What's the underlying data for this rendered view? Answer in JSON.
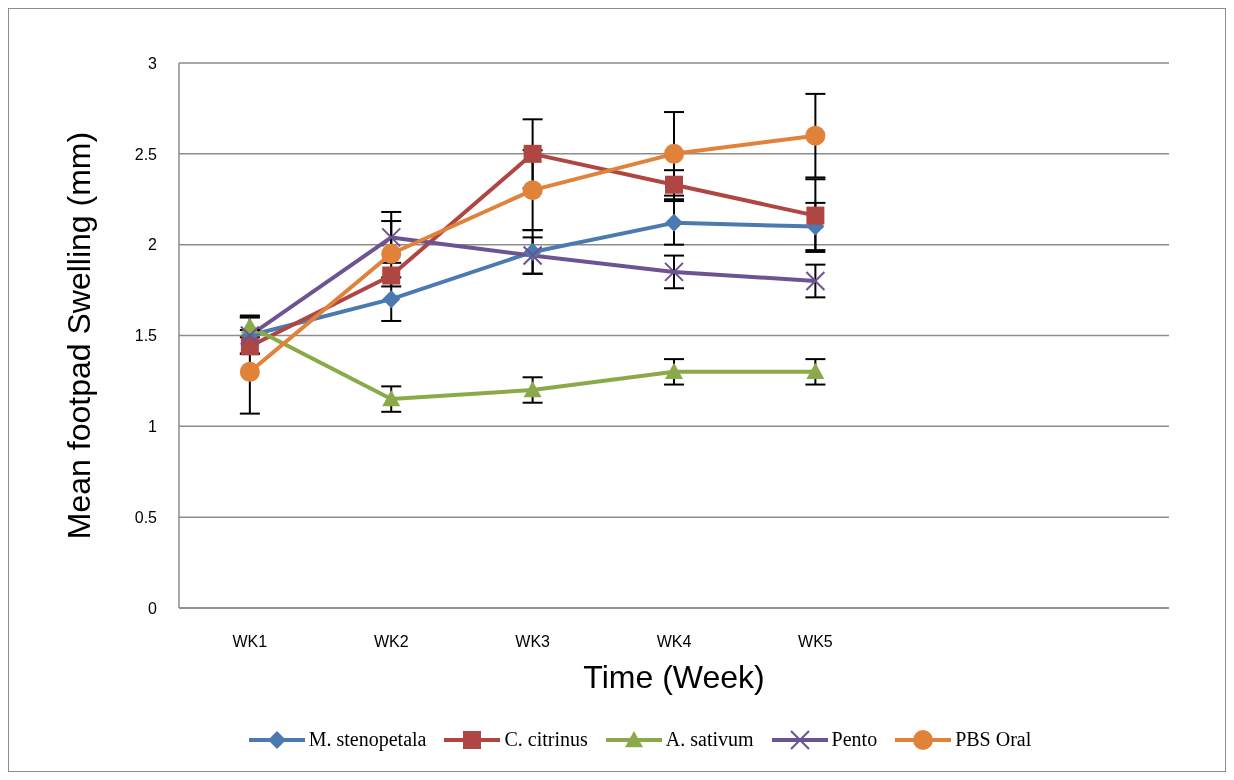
{
  "chart_data": {
    "type": "line",
    "xlabel": "Time (Week)",
    "ylabel": "Mean footpad Swelling (mm)",
    "categories": [
      "WK1",
      "WK2",
      "WK3",
      "WK4",
      "WK5",
      null,
      null
    ],
    "ylim": [
      0,
      3
    ],
    "yticks": [
      0,
      0.5,
      1,
      1.5,
      2,
      2.5,
      3
    ],
    "grid": "y",
    "legend": "bottom",
    "line_style": "solid",
    "series": [
      {
        "name": "M. stenopetala",
        "color": "#4a7ab0",
        "marker": "diamond",
        "values": [
          1.5,
          1.7,
          1.96,
          2.12,
          2.1,
          null,
          null
        ],
        "errors": [
          0.1,
          0.12,
          0.12,
          0.12,
          0.13,
          null,
          null
        ]
      },
      {
        "name": "C. citrinus",
        "color": "#b04643",
        "marker": "square",
        "values": [
          1.44,
          1.83,
          2.5,
          2.33,
          2.16,
          null,
          null
        ],
        "errors": [
          null,
          null,
          0.19,
          0.08,
          0.2,
          null,
          null
        ]
      },
      {
        "name": "A. sativum",
        "color": "#8aaa4a",
        "marker": "triangle",
        "values": [
          1.55,
          1.15,
          1.2,
          1.3,
          1.3,
          null,
          null
        ],
        "errors": [
          0.06,
          0.07,
          0.07,
          0.07,
          0.07,
          null,
          null
        ]
      },
      {
        "name": "Pento",
        "color": "#6d5391",
        "marker": "cross",
        "values": [
          1.5,
          2.04,
          1.94,
          1.85,
          1.8,
          null,
          null
        ],
        "errors": [
          0.1,
          0.14,
          0.1,
          0.09,
          0.09,
          null,
          null
        ]
      },
      {
        "name": "PBS Oral",
        "color": "#e0823a",
        "marker": "circle",
        "values": [
          1.3,
          1.95,
          2.3,
          2.5,
          2.6,
          null,
          null
        ],
        "errors": [
          0.23,
          0.18,
          0.22,
          0.23,
          0.23,
          null,
          null
        ]
      }
    ]
  }
}
